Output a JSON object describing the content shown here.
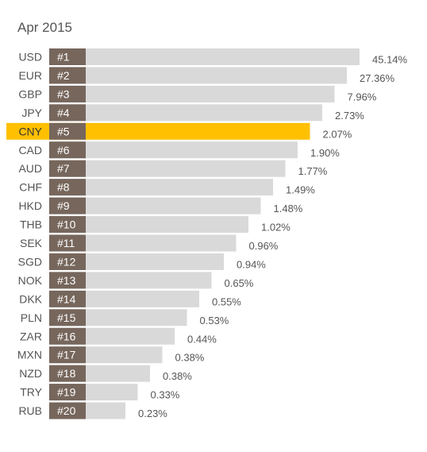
{
  "title": "Apr 2015",
  "colors": {
    "bar": "#d9d9d9",
    "highlight": "#ffc000",
    "highlight_band": "#ffc000",
    "rank_box": "#76665c"
  },
  "chart_data": {
    "type": "bar",
    "orientation": "horizontal",
    "title": "Apr 2015",
    "xlabel": "",
    "ylabel": "",
    "value_unit": "%",
    "highlight": "CNY",
    "categories": [
      "USD",
      "EUR",
      "GBP",
      "JPY",
      "CNY",
      "CAD",
      "AUD",
      "CHF",
      "HKD",
      "THB",
      "SEK",
      "SGD",
      "NOK",
      "DKK",
      "PLN",
      "ZAR",
      "MXN",
      "NZD",
      "TRY",
      "RUB"
    ],
    "ranks": [
      "#1",
      "#2",
      "#3",
      "#4",
      "#5",
      "#6",
      "#7",
      "#8",
      "#9",
      "#10",
      "#11",
      "#12",
      "#13",
      "#14",
      "#15",
      "#16",
      "#17",
      "#18",
      "#19",
      "#20"
    ],
    "values": [
      45.14,
      27.36,
      7.96,
      2.73,
      2.07,
      1.9,
      1.77,
      1.49,
      1.48,
      1.02,
      0.96,
      0.94,
      0.65,
      0.55,
      0.53,
      0.44,
      0.38,
      0.38,
      0.33,
      0.23
    ],
    "value_labels": [
      "45.14%",
      "27.36%",
      "7.96%",
      "2.73%",
      "2.07%",
      "1.90%",
      "1.77%",
      "1.49%",
      "1.48%",
      "1.02%",
      "0.96%",
      "0.94%",
      "0.65%",
      "0.55%",
      "0.53%",
      "0.44%",
      "0.38%",
      "0.38%",
      "0.33%",
      "0.23%"
    ]
  }
}
